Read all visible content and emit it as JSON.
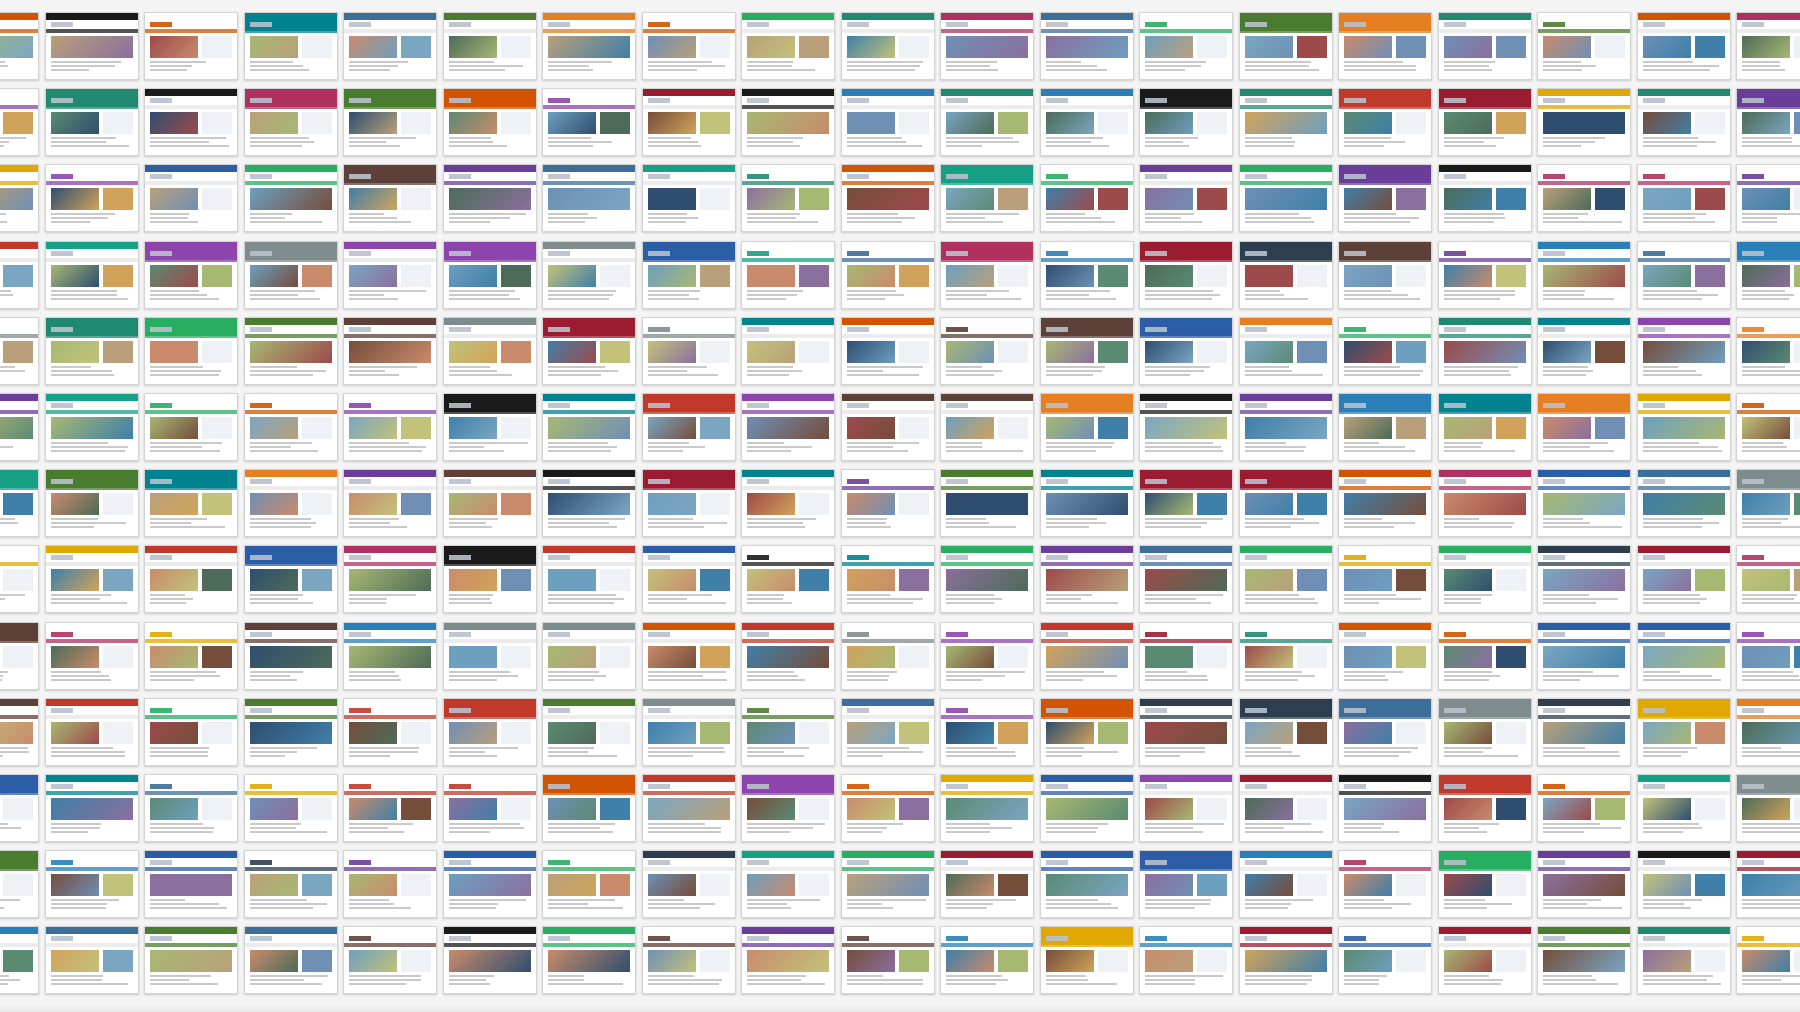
{
  "grid": {
    "rows": 13,
    "columns": 19,
    "tile_role": "website-thumbnail"
  },
  "palette": [
    "#2b5ea7",
    "#6a3d9a",
    "#1f8a70",
    "#c0392b",
    "#e67e22",
    "#16a085",
    "#8e44ad",
    "#2c3e50",
    "#27ae60",
    "#d35400",
    "#2980b9",
    "#7f8c8d",
    "#b03060",
    "#3d6e99",
    "#9b1c31",
    "#4a7c2f",
    "#e0a800",
    "#1a1a1a",
    "#00838f",
    "#5d4037"
  ],
  "hero_palette": [
    "#6f8fb5",
    "#a7b873",
    "#c98b6b",
    "#7aa6c2",
    "#8b6f9e",
    "#4d6b58",
    "#b9a07a",
    "#2f4e6f",
    "#d1a35a",
    "#5b8a72",
    "#9c4a4a",
    "#3f7fa8",
    "#c2c27a",
    "#754d3b",
    "#6d9fbf"
  ]
}
